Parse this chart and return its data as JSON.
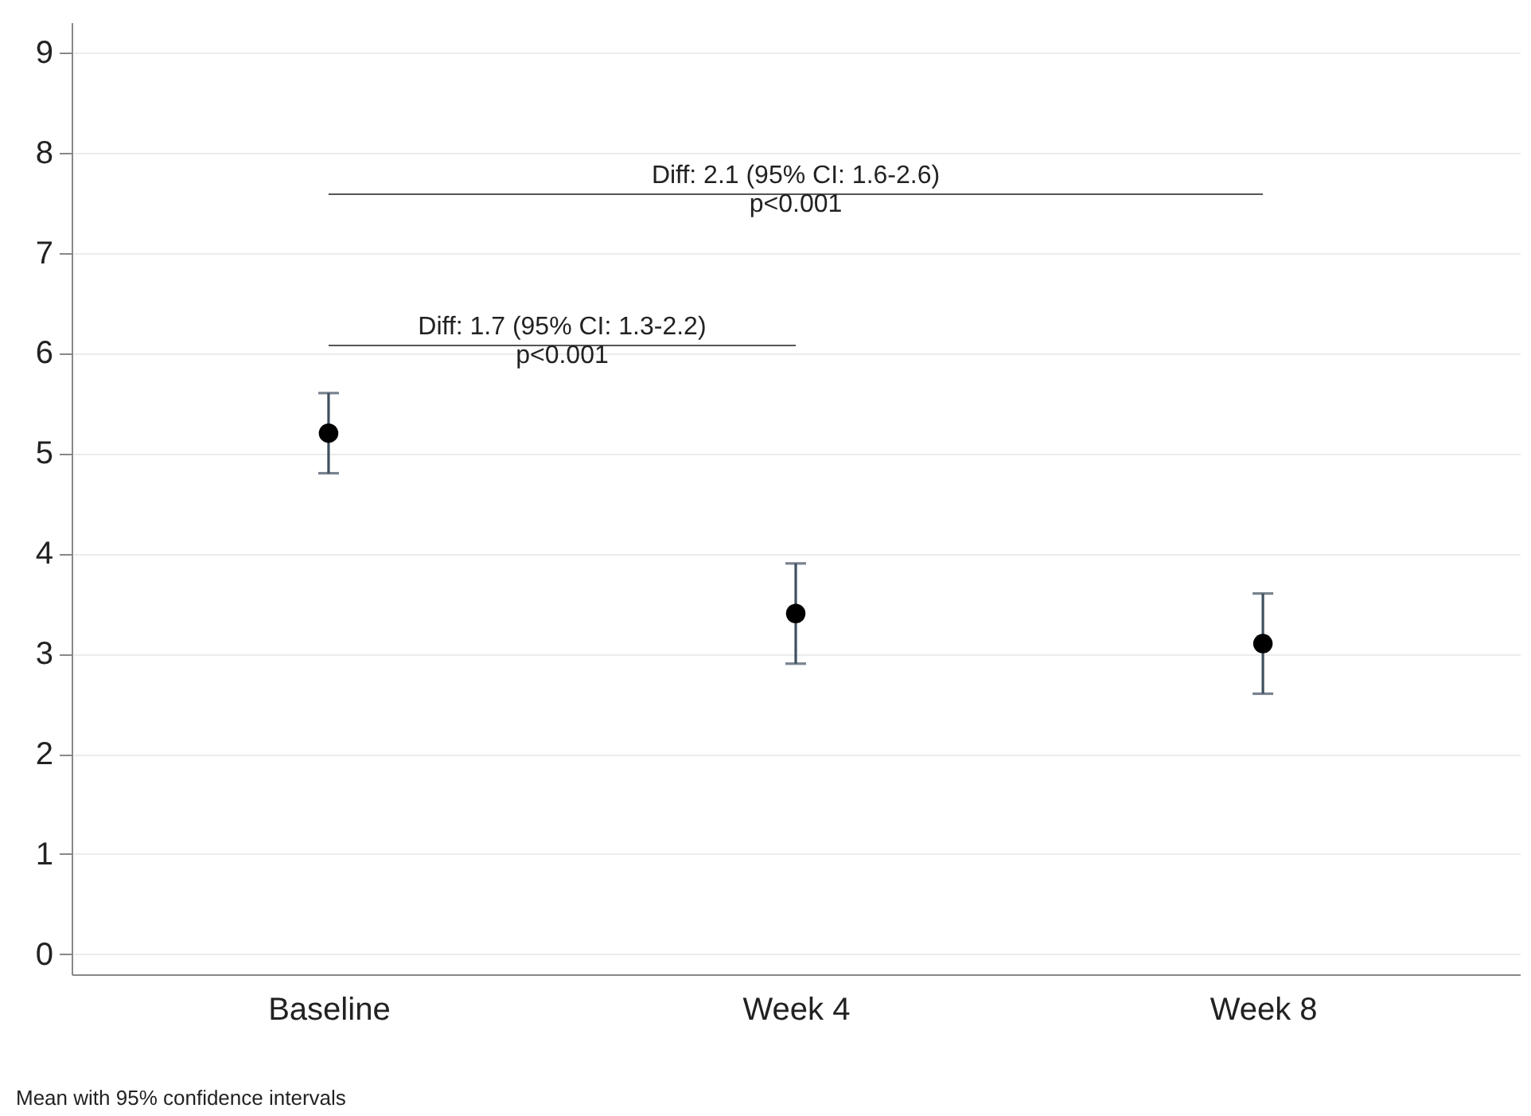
{
  "chart_data": {
    "type": "scatter",
    "categories": [
      "Baseline",
      "Week 4",
      "Week 8"
    ],
    "series": [
      {
        "color": "#000000",
        "values": [
          5.2,
          3.4,
          3.1
        ],
        "errors": [
          [
            4.8,
            5.6
          ],
          [
            2.9,
            3.9
          ],
          [
            2.6,
            3.6
          ]
        ]
      }
    ],
    "ylim": [
      -0.2,
      9.3
    ],
    "yticks": [
      0,
      1,
      2,
      3,
      4,
      5,
      6,
      7,
      8,
      9
    ],
    "grid": "y",
    "marker": "circle",
    "annotations": [
      "Diff: 1.7 (95% CI: 1.3-2.2)\np<0.001",
      "Diff: 2.1 (95% CI: 1.6-2.6)\np<0.001",
      "Mean with 95% confidence intervals"
    ]
  }
}
